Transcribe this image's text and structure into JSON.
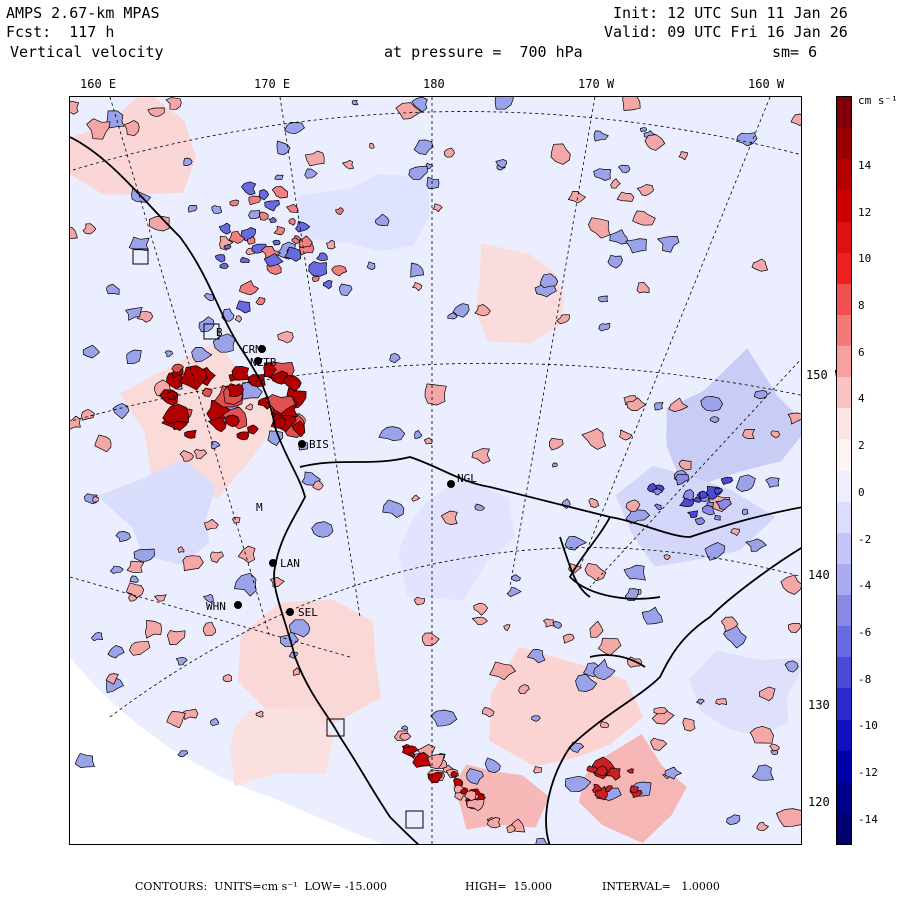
{
  "header": {
    "model": "AMPS 2.67-km MPAS",
    "forecast": "Fcst:  117 h",
    "field": "Vertical velocity",
    "init": "Init: 12 UTC Sun 11 Jan 26",
    "valid": "Valid: 09 UTC Fri 16 Jan 26",
    "pressure": "at pressure =  700 hPa",
    "smoothing": "sm= 6"
  },
  "axes": {
    "top_labels": [
      "160 E",
      "170 E",
      "180",
      "170 W",
      "160 W"
    ],
    "right_labels": [
      "150 W",
      "140 W",
      "130 W",
      "120 W"
    ]
  },
  "stations": [
    "CRM",
    "NZTB",
    "BIS",
    "NGL",
    "LAN",
    "WHN",
    "SEL",
    "B",
    "M"
  ],
  "colorbar": {
    "units": "cm s⁻¹",
    "ticks": [
      "14",
      "12",
      "10",
      "8",
      "6",
      "4",
      "2",
      "0",
      "-2",
      "-4",
      "-6",
      "-8",
      "-10",
      "-12",
      "-14"
    ],
    "colors": [
      "#80000a",
      "#9b0000",
      "#b50000",
      "#cc0000",
      "#e01010",
      "#ee2020",
      "#f05050",
      "#f47a7a",
      "#f7a0a0",
      "#fac4c4",
      "#fde4e4",
      "#fff4f4",
      "#eeeeff",
      "#dcdcff",
      "#c4c4f8",
      "#aaaaf0",
      "#8a8ae6",
      "#6a6ae0",
      "#4a4ad6",
      "#2a2acc",
      "#1010c0",
      "#0000aa",
      "#00008a",
      "#00006e"
    ]
  },
  "footer": {
    "contours": "CONTOURS:  UNITS=cm s⁻¹  LOW= -15.000",
    "high": "HIGH=  15.000",
    "interval": "INTERVAL=   1.0000"
  },
  "colors": {
    "land_bg": "#ebeeff",
    "positive": "#f4a7a7",
    "negative": "#8d95e6"
  }
}
